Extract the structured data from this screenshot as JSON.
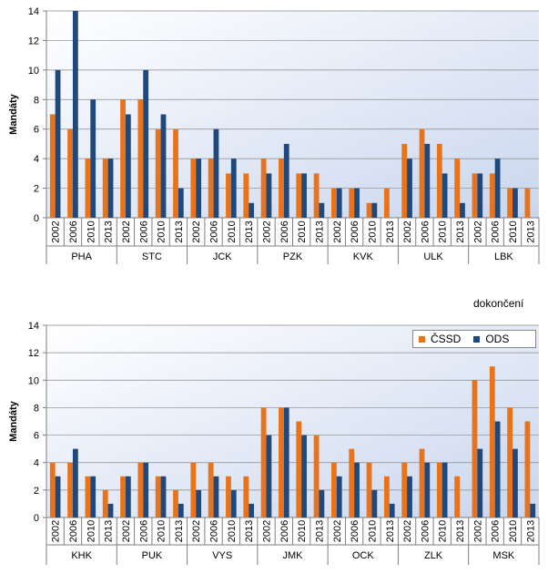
{
  "note": "dokončení",
  "colors": {
    "cssd": "#e8731a",
    "ods": "#1f497d"
  },
  "chart_data": [
    {
      "type": "bar",
      "ylabel": "Mandáty",
      "ylim": [
        0,
        14
      ],
      "yticks": [
        0,
        2,
        4,
        6,
        8,
        10,
        12,
        14
      ],
      "grid": true,
      "regions": [
        {
          "name": "PHA",
          "years": [
            "2002",
            "2006",
            "2010",
            "2013"
          ],
          "cssd": [
            7,
            6,
            4,
            4
          ],
          "ods": [
            10,
            14,
            8,
            4
          ]
        },
        {
          "name": "STC",
          "years": [
            "2002",
            "2006",
            "2010",
            "2013"
          ],
          "cssd": [
            8,
            8,
            6,
            6
          ],
          "ods": [
            7,
            10,
            7,
            2
          ]
        },
        {
          "name": "JCK",
          "years": [
            "2002",
            "2006",
            "2010",
            "2013"
          ],
          "cssd": [
            4,
            4,
            3,
            3
          ],
          "ods": [
            4,
            6,
            4,
            1
          ]
        },
        {
          "name": "PZK",
          "years": [
            "2002",
            "2006",
            "2010",
            "2013"
          ],
          "cssd": [
            4,
            4,
            3,
            3
          ],
          "ods": [
            3,
            5,
            3,
            1
          ]
        },
        {
          "name": "KVK",
          "years": [
            "2002",
            "2006",
            "2010",
            "2013"
          ],
          "cssd": [
            2,
            2,
            1,
            2
          ],
          "ods": [
            2,
            2,
            1,
            0
          ]
        },
        {
          "name": "ULK",
          "years": [
            "2002",
            "2006",
            "2010",
            "2013"
          ],
          "cssd": [
            5,
            6,
            5,
            4
          ],
          "ods": [
            4,
            5,
            3,
            1
          ]
        },
        {
          "name": "LBK",
          "years": [
            "2002",
            "2006",
            "2010",
            "2013"
          ],
          "cssd": [
            3,
            3,
            2,
            2
          ],
          "ods": [
            3,
            4,
            2,
            0
          ]
        }
      ]
    },
    {
      "type": "bar",
      "ylabel": "Mandáty",
      "ylim": [
        0,
        14
      ],
      "yticks": [
        0,
        2,
        4,
        6,
        8,
        10,
        12,
        14
      ],
      "grid": true,
      "legend": {
        "position": "top-right",
        "entries": [
          "ČSSD",
          "ODS"
        ]
      },
      "regions": [
        {
          "name": "KHK",
          "years": [
            "2002",
            "2006",
            "2010",
            "2013"
          ],
          "cssd": [
            4,
            4,
            3,
            2
          ],
          "ods": [
            3,
            5,
            3,
            1
          ]
        },
        {
          "name": "PUK",
          "years": [
            "2002",
            "2006",
            "2010",
            "2013"
          ],
          "cssd": [
            3,
            4,
            3,
            2
          ],
          "ods": [
            3,
            4,
            3,
            1
          ]
        },
        {
          "name": "VYS",
          "years": [
            "2002",
            "2006",
            "2010",
            "2013"
          ],
          "cssd": [
            4,
            4,
            3,
            3
          ],
          "ods": [
            2,
            3,
            2,
            1
          ]
        },
        {
          "name": "JMK",
          "years": [
            "2002",
            "2006",
            "2010",
            "2013"
          ],
          "cssd": [
            8,
            8,
            7,
            6
          ],
          "ods": [
            6,
            8,
            6,
            2
          ]
        },
        {
          "name": "OCK",
          "years": [
            "2002",
            "2006",
            "2010",
            "2013"
          ],
          "cssd": [
            4,
            5,
            4,
            3
          ],
          "ods": [
            3,
            4,
            2,
            1
          ]
        },
        {
          "name": "ZLK",
          "years": [
            "2002",
            "2006",
            "2010",
            "2013"
          ],
          "cssd": [
            4,
            5,
            4,
            3
          ],
          "ods": [
            3,
            4,
            4,
            0
          ]
        },
        {
          "name": "MSK",
          "years": [
            "2002",
            "2006",
            "2010",
            "2013"
          ],
          "cssd": [
            10,
            11,
            8,
            7
          ],
          "ods": [
            5,
            7,
            5,
            1
          ]
        }
      ]
    }
  ]
}
